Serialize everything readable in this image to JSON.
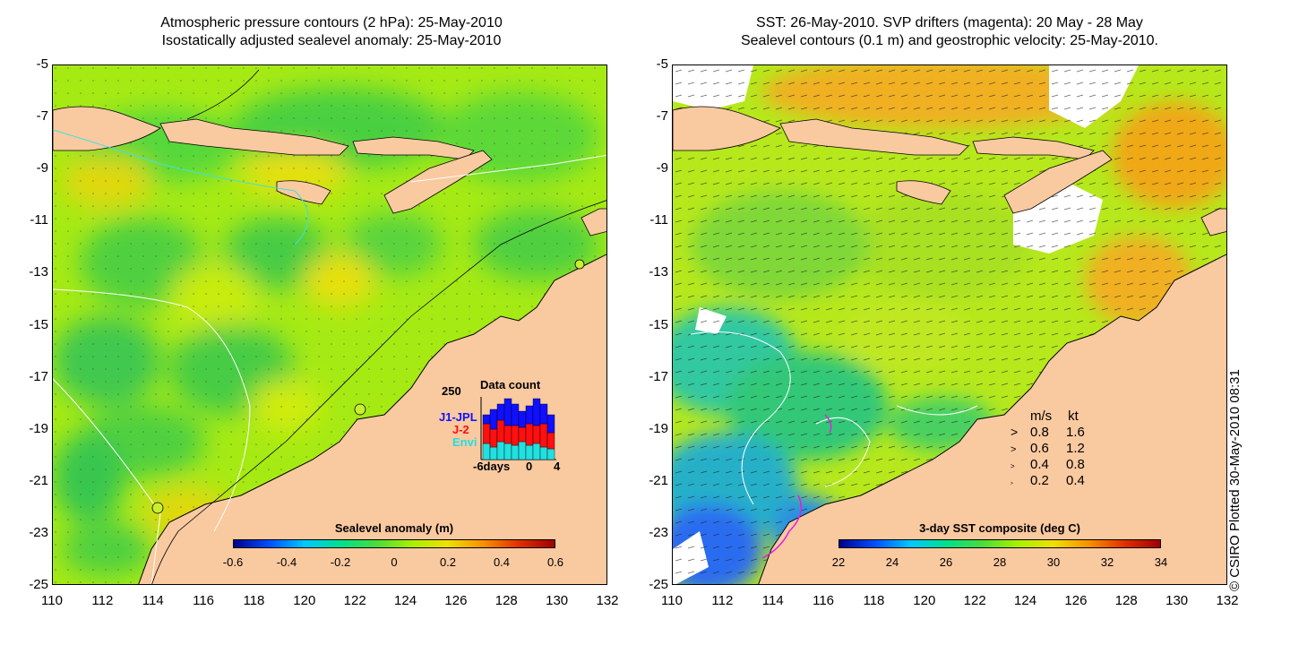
{
  "left_panel": {
    "title_line1": "Atmospheric pressure contours (2 hPa): 25-May-2010",
    "title_line2": "Isostatically adjusted sealevel anomaly: 25-May-2010",
    "colorbar": {
      "title": "Sealevel anomaly (m)",
      "ticks": [
        "-0.6",
        "-0.4",
        "-0.2",
        "0",
        "0.2",
        "0.4",
        "0.6"
      ]
    },
    "inset": {
      "title": "Data count",
      "ymax_label": "250",
      "legend": [
        {
          "label": "J1-JPL",
          "color": "#1010ff"
        },
        {
          "label": "J-2",
          "color": "#ff1010"
        },
        {
          "label": "Envi",
          "color": "#22e0e0"
        }
      ],
      "xlabels": [
        "-6days",
        "0",
        "4"
      ]
    }
  },
  "right_panel": {
    "title_line1": "SST: 26-May-2010. SVP drifters (magenta): 20 May - 28 May",
    "title_line2": "Sealevel contours (0.1 m) and geostrophic velocity: 25-May-2010.",
    "colorbar": {
      "title": "3-day SST composite (deg C)",
      "ticks": [
        "22",
        "24",
        "26",
        "28",
        "30",
        "32",
        "34"
      ]
    },
    "velocity_key": {
      "header_ms": "m/s",
      "header_kt": "kt",
      "rows": [
        {
          "ms": "0.8",
          "kt": "1.6"
        },
        {
          "ms": "0.6",
          "kt": "1.2"
        },
        {
          "ms": "0.4",
          "kt": "0.8"
        },
        {
          "ms": "0.2",
          "kt": "0.4"
        }
      ]
    }
  },
  "axes": {
    "y_ticks": [
      "-5",
      "-7",
      "-9",
      "-11",
      "-13",
      "-15",
      "-17",
      "-19",
      "-21",
      "-23",
      "-25"
    ],
    "x_ticks": [
      "110",
      "112",
      "114",
      "116",
      "118",
      "120",
      "122",
      "124",
      "126",
      "128",
      "130",
      "132"
    ]
  },
  "stamp": "© CSIRO Plotted 30-May-2010 08:31",
  "colors": {
    "land": "#f9c9a0",
    "sea_green": "#7ee02a",
    "sea_lime": "#b8f000",
    "sea_deep": "#38c858",
    "sst_blue": "#2a6cf0",
    "sst_cyan": "#22c8c8",
    "sst_orange": "#f0b020"
  }
}
